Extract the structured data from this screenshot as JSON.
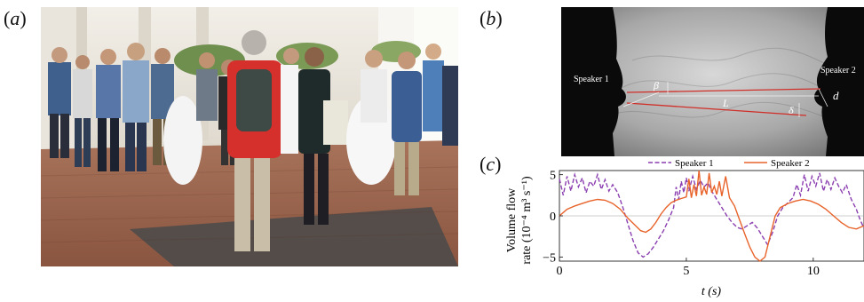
{
  "panels": {
    "a": {
      "open": "(",
      "letter": "a",
      "close": ")"
    },
    "b": {
      "open": "(",
      "letter": "b",
      "close": ")"
    },
    "c": {
      "open": "(",
      "letter": "c",
      "close": ")"
    }
  },
  "panel_b": {
    "speaker1": "Speaker 1",
    "speaker2": "Speaker 2",
    "beta": "β",
    "L": "L",
    "d": "d",
    "delta": "δ"
  },
  "colors": {
    "speaker1": "#8b3fb0",
    "speaker2": "#e8632a",
    "annotation_red": "#d0302a"
  },
  "chart_data": {
    "type": "line",
    "title": "",
    "xlabel": "t (s)",
    "ylabel_line1": "Volume flow",
    "ylabel_line2": "rate (10⁻⁴ m³ s⁻¹)",
    "xlim": [
      0,
      12
    ],
    "ylim": [
      -5.5,
      5.5
    ],
    "xticks": [
      0,
      5,
      10
    ],
    "yticks": [
      -5,
      0,
      5
    ],
    "xtick_labels": [
      "0",
      "5",
      "10"
    ],
    "ytick_labels": [
      "−5",
      "0",
      "5"
    ],
    "legend": "top-center",
    "series": [
      {
        "name": "Speaker 1",
        "style": "dashed",
        "points": [
          [
            0,
            4.5
          ],
          [
            0.15,
            2.5
          ],
          [
            0.3,
            4.8
          ],
          [
            0.45,
            3
          ],
          [
            0.6,
            5
          ],
          [
            0.75,
            3.5
          ],
          [
            0.9,
            4.6
          ],
          [
            1.05,
            2.8
          ],
          [
            1.2,
            4.2
          ],
          [
            1.35,
            3.6
          ],
          [
            1.5,
            5
          ],
          [
            1.65,
            3.2
          ],
          [
            1.8,
            4.4
          ],
          [
            1.95,
            3
          ],
          [
            2.1,
            3.8
          ],
          [
            2.3,
            2.8
          ],
          [
            2.5,
            1
          ],
          [
            2.7,
            -1
          ],
          [
            2.9,
            -3
          ],
          [
            3.1,
            -4.5
          ],
          [
            3.3,
            -5
          ],
          [
            3.5,
            -4.6
          ],
          [
            3.7,
            -3.8
          ],
          [
            3.9,
            -2.8
          ],
          [
            4.1,
            -1.8
          ],
          [
            4.3,
            -0.5
          ],
          [
            4.5,
            1
          ],
          [
            4.6,
            3.5
          ],
          [
            4.7,
            2
          ],
          [
            4.8,
            4.2
          ],
          [
            4.9,
            2.8
          ],
          [
            5.0,
            4.6
          ],
          [
            5.1,
            3
          ],
          [
            5.25,
            4.8
          ],
          [
            5.4,
            3.2
          ],
          [
            5.55,
            4.3
          ],
          [
            5.7,
            3.5
          ],
          [
            5.85,
            4
          ],
          [
            6.0,
            3
          ],
          [
            6.2,
            2
          ],
          [
            6.4,
            1
          ],
          [
            6.6,
            0
          ],
          [
            6.8,
            -0.8
          ],
          [
            7.0,
            -1.4
          ],
          [
            7.2,
            -1.6
          ],
          [
            7.4,
            -1.2
          ],
          [
            7.6,
            -0.8
          ],
          [
            7.8,
            -1.5
          ],
          [
            8.0,
            -2.5
          ],
          [
            8.2,
            -3.5
          ],
          [
            8.4,
            -2
          ],
          [
            8.6,
            0
          ],
          [
            8.8,
            1
          ],
          [
            9.0,
            1.6
          ],
          [
            9.2,
            2.2
          ],
          [
            9.35,
            3.8
          ],
          [
            9.5,
            2.5
          ],
          [
            9.65,
            5
          ],
          [
            9.8,
            3
          ],
          [
            9.95,
            4.8
          ],
          [
            10.1,
            3.6
          ],
          [
            10.25,
            5.2
          ],
          [
            10.4,
            3
          ],
          [
            10.55,
            4.4
          ],
          [
            10.7,
            3.2
          ],
          [
            10.85,
            4.6
          ],
          [
            11.0,
            3.6
          ],
          [
            11.15,
            2.8
          ],
          [
            11.3,
            3.8
          ],
          [
            11.5,
            2
          ],
          [
            11.7,
            0.8
          ],
          [
            11.85,
            -0.5
          ],
          [
            12,
            -1.5
          ]
        ]
      },
      {
        "name": "Speaker 2",
        "style": "solid",
        "points": [
          [
            0,
            0
          ],
          [
            0.3,
            0.8
          ],
          [
            0.6,
            1.2
          ],
          [
            0.9,
            1.5
          ],
          [
            1.2,
            1.8
          ],
          [
            1.5,
            2
          ],
          [
            1.8,
            1.9
          ],
          [
            2.1,
            1.5
          ],
          [
            2.4,
            0.8
          ],
          [
            2.7,
            -0.3
          ],
          [
            3.0,
            -1.2
          ],
          [
            3.2,
            -1.8
          ],
          [
            3.4,
            -2
          ],
          [
            3.6,
            -1.6
          ],
          [
            3.8,
            -0.8
          ],
          [
            4.0,
            0.2
          ],
          [
            4.2,
            1
          ],
          [
            4.4,
            1.6
          ],
          [
            4.6,
            1.9
          ],
          [
            4.8,
            2.1
          ],
          [
            5.0,
            2.3
          ],
          [
            5.1,
            4.5
          ],
          [
            5.2,
            2.2
          ],
          [
            5.3,
            3.8
          ],
          [
            5.4,
            2.4
          ],
          [
            5.5,
            5.5
          ],
          [
            5.6,
            2.5
          ],
          [
            5.7,
            3.5
          ],
          [
            5.8,
            2.6
          ],
          [
            5.9,
            5.2
          ],
          [
            6.0,
            2.8
          ],
          [
            6.1,
            3.6
          ],
          [
            6.2,
            2.6
          ],
          [
            6.3,
            4.2
          ],
          [
            6.4,
            2.4
          ],
          [
            6.55,
            4.8
          ],
          [
            6.7,
            2.2
          ],
          [
            6.9,
            1.2
          ],
          [
            7.1,
            -0.5
          ],
          [
            7.3,
            -2.2
          ],
          [
            7.5,
            -3.8
          ],
          [
            7.7,
            -5
          ],
          [
            7.9,
            -5.5
          ],
          [
            8.1,
            -5
          ],
          [
            8.3,
            -2.5
          ],
          [
            8.5,
            0
          ],
          [
            8.7,
            1
          ],
          [
            9.0,
            1.5
          ],
          [
            9.3,
            1.8
          ],
          [
            9.6,
            2
          ],
          [
            9.9,
            1.8
          ],
          [
            10.2,
            1.4
          ],
          [
            10.5,
            0.8
          ],
          [
            10.8,
            0
          ],
          [
            11.1,
            -0.8
          ],
          [
            11.4,
            -1.4
          ],
          [
            11.7,
            -1.6
          ],
          [
            12,
            -1.2
          ]
        ]
      }
    ]
  }
}
